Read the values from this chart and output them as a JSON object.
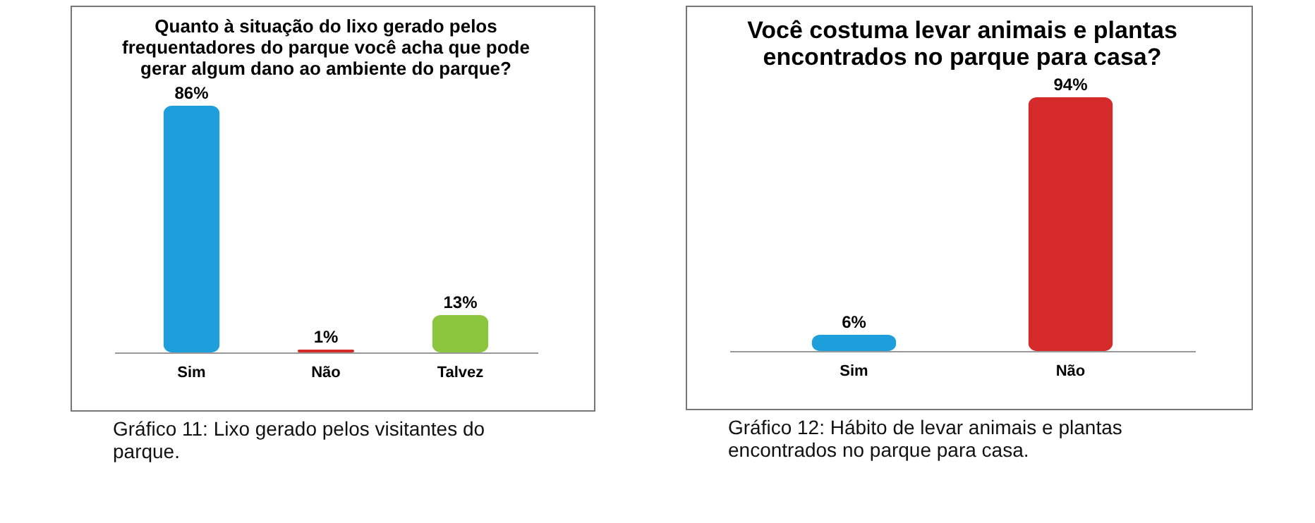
{
  "chart_data": [
    {
      "type": "bar",
      "title": "Quanto à situação do lixo gerado pelos frequentadores do parque você acha que pode gerar algum dano ao ambiente do parque?",
      "categories": [
        "Sim",
        "Não",
        "Talvez"
      ],
      "values": [
        86,
        1,
        13
      ],
      "colors": [
        "#1e9fdc",
        "#d42a2a",
        "#8cc63f"
      ],
      "value_labels": [
        "86%",
        "1%",
        "13%"
      ],
      "annotations": [
        "Gráfico 11: Lixo gerado pelos visitantes do parque."
      ]
    },
    {
      "type": "bar",
      "title": "Você costuma levar animais e plantas encontrados no parque para casa?",
      "categories": [
        "Sim",
        "Não"
      ],
      "values": [
        6,
        94
      ],
      "colors": [
        "#1e9fdc",
        "#d42a2a"
      ],
      "value_labels": [
        "6%",
        "94%"
      ],
      "annotations": [
        "Gráfico 12: Hábito de levar animais e plantas encontrados no parque para casa."
      ]
    }
  ]
}
